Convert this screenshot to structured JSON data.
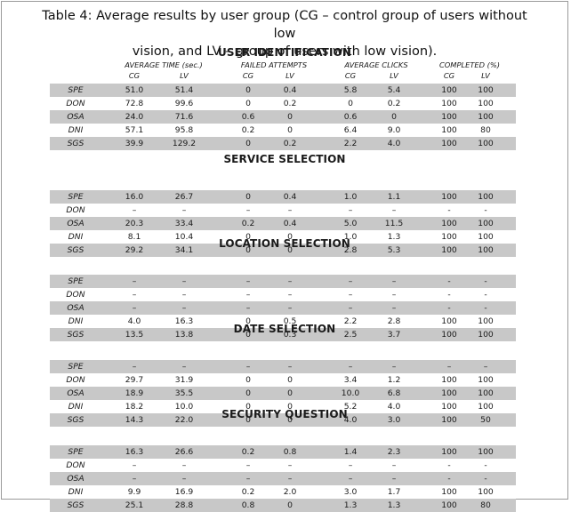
{
  "caption": {
    "line1": "Table 4: Average results by user group (CG – control group of users without low",
    "line2": "vision, and LV – group of users with low vision)."
  },
  "headers": {
    "avg_time": "AVERAGE TIME (sec.)",
    "failed": "FAILED ATTEMPTS",
    "clicks": "AVERAGE CLICKS",
    "completed": "COMPLETED (%)",
    "cg": "CG",
    "lv": "LV"
  },
  "sections": [
    {
      "title": "USER IDENTIFICATION",
      "rows": [
        {
          "label": "SPE",
          "time_cg": "51.0",
          "time_lv": "51.4",
          "fail_cg": "0",
          "fail_lv": "0.4",
          "clicks_cg": "5.8",
          "clicks_lv": "5.4",
          "comp_cg": "100",
          "comp_lv": "100"
        },
        {
          "label": "DON",
          "time_cg": "72.8",
          "time_lv": "99.6",
          "fail_cg": "0",
          "fail_lv": "0.2",
          "clicks_cg": "0",
          "clicks_lv": "0.2",
          "comp_cg": "100",
          "comp_lv": "100"
        },
        {
          "label": "OSA",
          "time_cg": "24.0",
          "time_lv": "71.6",
          "fail_cg": "0.6",
          "fail_lv": "0",
          "clicks_cg": "0.6",
          "clicks_lv": "0",
          "comp_cg": "100",
          "comp_lv": "100"
        },
        {
          "label": "DNI",
          "time_cg": "57.1",
          "time_lv": "95.8",
          "fail_cg": "0.2",
          "fail_lv": "0",
          "clicks_cg": "6.4",
          "clicks_lv": "9.0",
          "comp_cg": "100",
          "comp_lv": "80"
        },
        {
          "label": "SGS",
          "time_cg": "39.9",
          "time_lv": "129.2",
          "fail_cg": "0",
          "fail_lv": "0.2",
          "clicks_cg": "2.2",
          "clicks_lv": "4.0",
          "comp_cg": "100",
          "comp_lv": "100"
        }
      ]
    },
    {
      "title": "SERVICE SELECTION",
      "rows": [
        {
          "label": "SPE",
          "time_cg": "16.0",
          "time_lv": "26.7",
          "fail_cg": "0",
          "fail_lv": "0.4",
          "clicks_cg": "1.0",
          "clicks_lv": "1.1",
          "comp_cg": "100",
          "comp_lv": "100"
        },
        {
          "label": "DON",
          "time_cg": "–",
          "time_lv": "–",
          "fail_cg": "–",
          "fail_lv": "–",
          "clicks_cg": "–",
          "clicks_lv": "–",
          "comp_cg": "-",
          "comp_lv": "-"
        },
        {
          "label": "OSA",
          "time_cg": "20.3",
          "time_lv": "33.4",
          "fail_cg": "0.2",
          "fail_lv": "0.4",
          "clicks_cg": "5.0",
          "clicks_lv": "11.5",
          "comp_cg": "100",
          "comp_lv": "100"
        },
        {
          "label": "DNI",
          "time_cg": "8.1",
          "time_lv": "10.4",
          "fail_cg": "0",
          "fail_lv": "0",
          "clicks_cg": "1.0",
          "clicks_lv": "1.3",
          "comp_cg": "100",
          "comp_lv": "100"
        },
        {
          "label": "SGS",
          "time_cg": "29.2",
          "time_lv": "34.1",
          "fail_cg": "0",
          "fail_lv": "0",
          "clicks_cg": "2.8",
          "clicks_lv": "5.3",
          "comp_cg": "100",
          "comp_lv": "100"
        }
      ]
    },
    {
      "title": "LOCATION SELECTION",
      "rows": [
        {
          "label": "SPE",
          "time_cg": "–",
          "time_lv": "–",
          "fail_cg": "–",
          "fail_lv": "–",
          "clicks_cg": "–",
          "clicks_lv": "–",
          "comp_cg": "-",
          "comp_lv": "-"
        },
        {
          "label": "DON",
          "time_cg": "–",
          "time_lv": "–",
          "fail_cg": "–",
          "fail_lv": "–",
          "clicks_cg": "–",
          "clicks_lv": "–",
          "comp_cg": "-",
          "comp_lv": "-"
        },
        {
          "label": "OSA",
          "time_cg": "–",
          "time_lv": "–",
          "fail_cg": "–",
          "fail_lv": "–",
          "clicks_cg": "–",
          "clicks_lv": "–",
          "comp_cg": "-",
          "comp_lv": "-"
        },
        {
          "label": "DNI",
          "time_cg": "4.0",
          "time_lv": "16.3",
          "fail_cg": "0",
          "fail_lv": "0.5",
          "clicks_cg": "2.2",
          "clicks_lv": "2.8",
          "comp_cg": "100",
          "comp_lv": "100"
        },
        {
          "label": "SGS",
          "time_cg": "13.5",
          "time_lv": "13.8",
          "fail_cg": "0",
          "fail_lv": "0.3",
          "clicks_cg": "2.5",
          "clicks_lv": "3.7",
          "comp_cg": "100",
          "comp_lv": "100"
        }
      ]
    },
    {
      "title": "DATE SELECTION",
      "rows": [
        {
          "label": "SPE",
          "time_cg": "–",
          "time_lv": "–",
          "fail_cg": "–",
          "fail_lv": "–",
          "clicks_cg": "–",
          "clicks_lv": "–",
          "comp_cg": "–",
          "comp_lv": "–"
        },
        {
          "label": "DON",
          "time_cg": "29.7",
          "time_lv": "31.9",
          "fail_cg": "0",
          "fail_lv": "0",
          "clicks_cg": "3.4",
          "clicks_lv": "1.2",
          "comp_cg": "100",
          "comp_lv": "100"
        },
        {
          "label": "OSA",
          "time_cg": "18.9",
          "time_lv": "35.5",
          "fail_cg": "0",
          "fail_lv": "0",
          "clicks_cg": "10.0",
          "clicks_lv": "6.8",
          "comp_cg": "100",
          "comp_lv": "100"
        },
        {
          "label": "DNI",
          "time_cg": "18.2",
          "time_lv": "10.0",
          "fail_cg": "0",
          "fail_lv": "0",
          "clicks_cg": "5.2",
          "clicks_lv": "4.0",
          "comp_cg": "100",
          "comp_lv": "100"
        },
        {
          "label": "SGS",
          "time_cg": "14.3",
          "time_lv": "22.0",
          "fail_cg": "0",
          "fail_lv": "0",
          "clicks_cg": "4.0",
          "clicks_lv": "3.0",
          "comp_cg": "100",
          "comp_lv": "50"
        }
      ]
    },
    {
      "title": "SECURITY QUESTION",
      "rows": [
        {
          "label": "SPE",
          "time_cg": "16.3",
          "time_lv": "26.6",
          "fail_cg": "0.2",
          "fail_lv": "0.8",
          "clicks_cg": "1.4",
          "clicks_lv": "2.3",
          "comp_cg": "100",
          "comp_lv": "100"
        },
        {
          "label": "DON",
          "time_cg": "–",
          "time_lv": "–",
          "fail_cg": "–",
          "fail_lv": "–",
          "clicks_cg": "–",
          "clicks_lv": "–",
          "comp_cg": "-",
          "comp_lv": "-"
        },
        {
          "label": "OSA",
          "time_cg": "–",
          "time_lv": "–",
          "fail_cg": "–",
          "fail_lv": "–",
          "clicks_cg": "–",
          "clicks_lv": "–",
          "comp_cg": "-",
          "comp_lv": "-"
        },
        {
          "label": "DNI",
          "time_cg": "9.9",
          "time_lv": "16.9",
          "fail_cg": "0.2",
          "fail_lv": "2.0",
          "clicks_cg": "3.0",
          "clicks_lv": "1.7",
          "comp_cg": "100",
          "comp_lv": "100"
        },
        {
          "label": "SGS",
          "time_cg": "25.1",
          "time_lv": "28.8",
          "fail_cg": "0.8",
          "fail_lv": "0",
          "clicks_cg": "1.3",
          "clicks_lv": "1.3",
          "comp_cg": "100",
          "comp_lv": "80"
        }
      ]
    }
  ]
}
